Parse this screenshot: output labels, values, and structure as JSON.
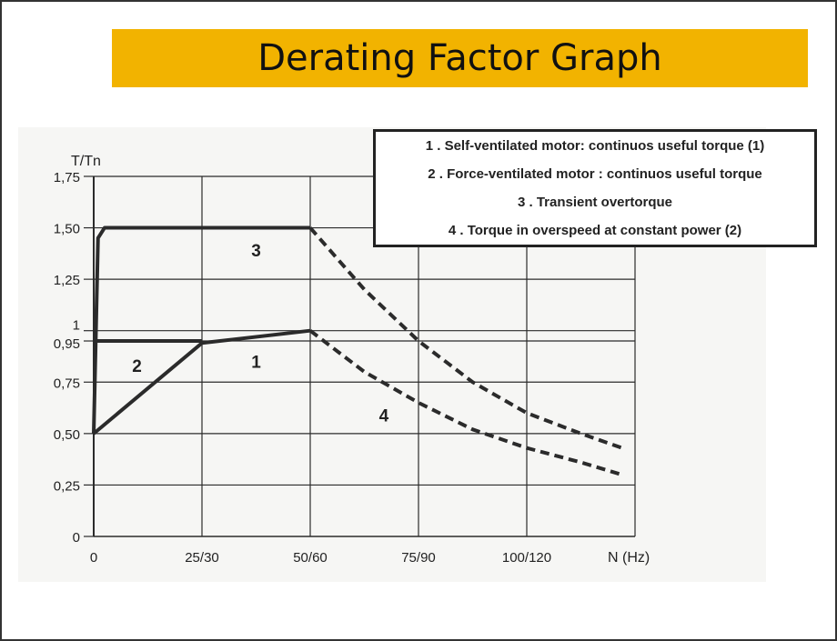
{
  "title": "Derating Factor Graph",
  "colors": {
    "title_bar": "#f2b300",
    "line": "#2b2b2b",
    "grid": "#2b2b2b"
  },
  "legend": [
    "1 . Self-ventilated motor: continuos useful torque (1)",
    "2 . Force-ventilated motor : continuos useful torque",
    "3 . Transient overtorque",
    "4 . Torque in overspeed at constant power (2)"
  ],
  "chart_data": {
    "type": "line",
    "ylabel": "T/Tn",
    "xlabel": "N (Hz)",
    "x_ticks": [
      "0",
      "25/30",
      "50/60",
      "75/90",
      "100/120"
    ],
    "y_ticks": [
      "0",
      "0,25",
      "0,50",
      "0,75",
      "0,95",
      "1",
      "1,25",
      "1,50",
      "1,75"
    ],
    "y_tick_values": [
      0,
      0.25,
      0.5,
      0.75,
      0.95,
      1,
      1.25,
      1.5,
      1.75
    ],
    "xlim": [
      0,
      125
    ],
    "ylim": [
      0,
      1.75
    ],
    "grid": true,
    "curve_labels": [
      "1",
      "2",
      "3",
      "4"
    ],
    "series": [
      {
        "label": "1",
        "style": "solid",
        "points": [
          [
            25,
            0.94
          ],
          [
            50,
            1.0
          ]
        ]
      },
      {
        "label": "2",
        "style": "solid",
        "points": [
          [
            0,
            0.5
          ],
          [
            25,
            0.94
          ]
        ]
      },
      {
        "label": "2",
        "style": "solid",
        "points": [
          [
            0,
            0.95
          ],
          [
            25,
            0.95
          ]
        ]
      },
      {
        "label": "3",
        "style": "solid",
        "points": [
          [
            0,
            0.5
          ],
          [
            1,
            1.45
          ],
          [
            2.5,
            1.5
          ],
          [
            50,
            1.5
          ]
        ]
      },
      {
        "label": "3",
        "style": "dashed",
        "points": [
          [
            50,
            1.5
          ],
          [
            62.5,
            1.2
          ],
          [
            75,
            0.95
          ],
          [
            87.5,
            0.75
          ],
          [
            100,
            0.6
          ],
          [
            112.5,
            0.5
          ],
          [
            122,
            0.43
          ]
        ]
      },
      {
        "label": "4",
        "style": "dashed",
        "points": [
          [
            50,
            1.0
          ],
          [
            62.5,
            0.8
          ],
          [
            75,
            0.65
          ],
          [
            87.5,
            0.52
          ],
          [
            100,
            0.43
          ],
          [
            112.5,
            0.36
          ],
          [
            122,
            0.3
          ]
        ]
      }
    ]
  }
}
